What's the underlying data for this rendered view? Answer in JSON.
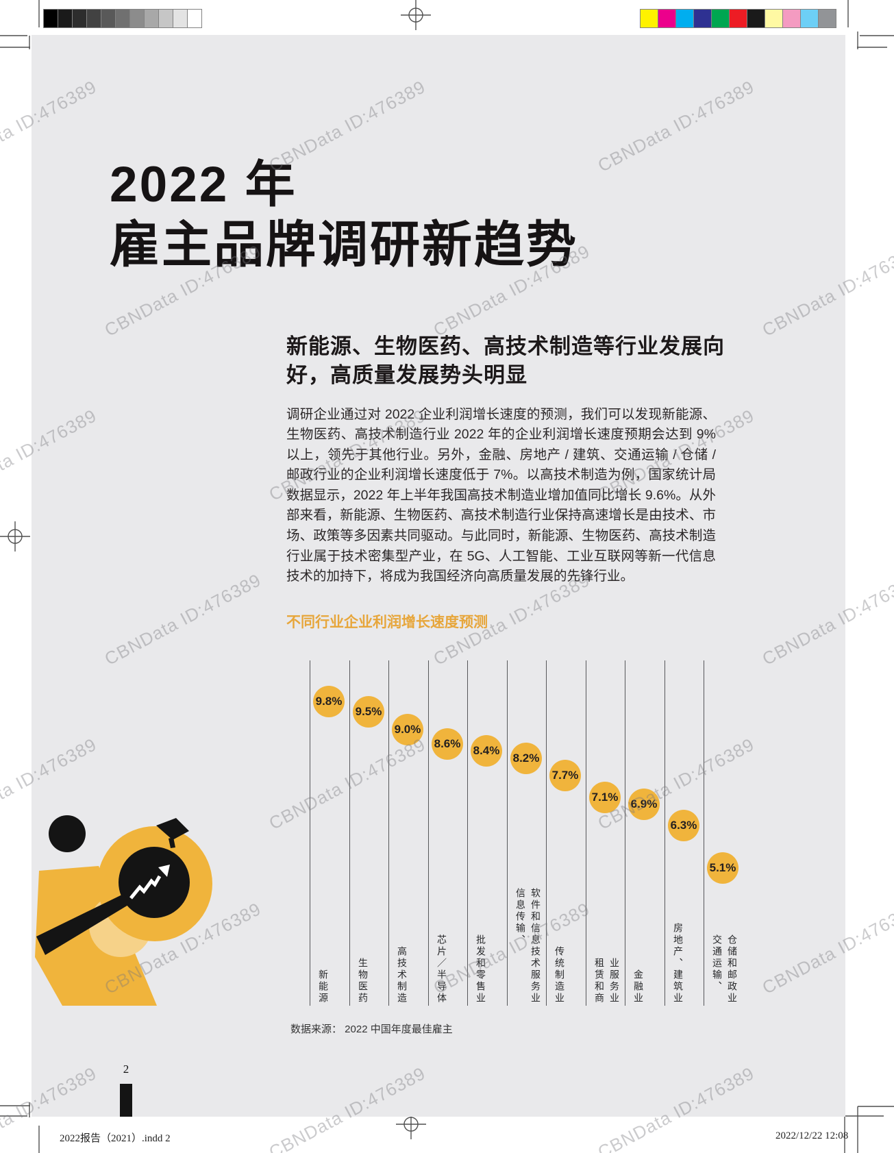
{
  "print_marks": {
    "grayscale_bar": [
      "#000000",
      "#1a1a1a",
      "#2d2d2d",
      "#424242",
      "#595959",
      "#707070",
      "#8c8c8c",
      "#a8a8a8",
      "#c6c6c6",
      "#e3e3e3",
      "#ffffff"
    ],
    "color_bar": [
      "#FFF200",
      "#EC008C",
      "#00AEEF",
      "#2E3192",
      "#00A651",
      "#ED1C24",
      "#1A1A1A",
      "#FFF9A3",
      "#F49BC1",
      "#6DCFF6",
      "#929497"
    ]
  },
  "watermark": {
    "text": "CBNData ID:476389"
  },
  "page": {
    "title": "2022 年\n雇主品牌调研新趋势",
    "heading": "新能源、生物医药、高技术制造等行业发展向好，高质量发展势头明显",
    "body": "调研企业通过对 2022 企业利润增长速度的预测，我们可以发现新能源、生物医药、高技术制造行业 2022 年的企业利润增长速度预期会达到 9% 以上，领先于其他行业。另外，金融、房地产 / 建筑、交通运输 / 仓储 / 邮政行业的企业利润增长速度低于 7%。以高技术制造为例，国家统计局数据显示，2022 年上半年我国高技术制造业增加值同比增长 9.6%。从外部来看，新能源、生物医药、高技术制造行业保持高速增长是由技术、市场、政策等多因素共同驱动。与此同时，新能源、生物医药、高技术制造行业属于技术密集型产业，在 5G、人工智能、工业互联网等新一代信息技术的加持下，将成为我国经济向高质量发展的先锋行业。",
    "data_source": "数据来源： 2022 中国年度最佳雇主",
    "page_number": "2"
  },
  "chart_data": {
    "type": "dot",
    "title": "不同行业企业利润增长速度预测",
    "categories": [
      "新能源",
      "生物医药",
      "高技术制造",
      "芯片/半导体",
      "批发和零售业",
      "信息传输、软件和信息技术服务业",
      "传统制造业",
      "租赁和商业服务业",
      "金融业",
      "房地产、建筑业",
      "交通运输、仓储和邮政业"
    ],
    "category_display": [
      "新能源",
      "生物医药",
      "高技术制造",
      "芯片／半导体",
      "批发和零售业",
      "信息传输、\n软件和信息技术服务业",
      "传统制造业",
      "租赁和商\n业服务业",
      "金融业",
      "房地产、建筑业",
      "交通运输、\n仓储和邮政业"
    ],
    "values": [
      9.8,
      9.5,
      9.0,
      8.6,
      8.4,
      8.2,
      7.7,
      7.1,
      6.9,
      6.3,
      5.1
    ],
    "value_labels": [
      "9.8%",
      "9.5%",
      "9.0%",
      "8.6%",
      "8.4%",
      "8.2%",
      "7.7%",
      "7.1%",
      "6.9%",
      "6.3%",
      "5.1%"
    ],
    "unit": "%",
    "value_range": [
      5.1,
      9.8
    ],
    "accent_color": "#F0B43C",
    "grid": "vertical-category-lines",
    "legend": "none",
    "value_axis": "hidden"
  },
  "footer": {
    "filename": "2022报告（2021）.indd  2",
    "timestamp": "2022/12/22  12:08"
  }
}
